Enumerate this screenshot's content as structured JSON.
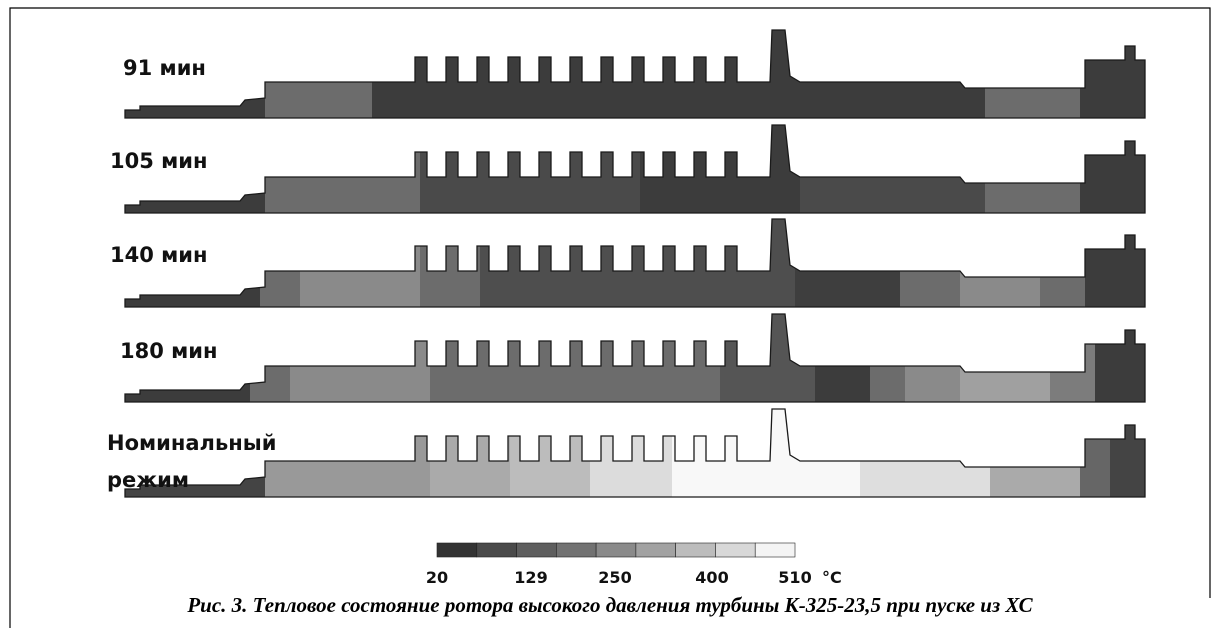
{
  "figure": {
    "labels": [
      "91 мин",
      "105 мин",
      "140 мин",
      "180 мин",
      [
        "Номинальный",
        "режим"
      ]
    ],
    "colorbar": {
      "ticks": [
        20,
        129,
        250,
        400,
        510
      ],
      "unit": "°C"
    },
    "caption": "Рис. 3. Тепловое состояние ротора высокого давления турбины К-325-23,5 при пуске из ХС"
  }
}
